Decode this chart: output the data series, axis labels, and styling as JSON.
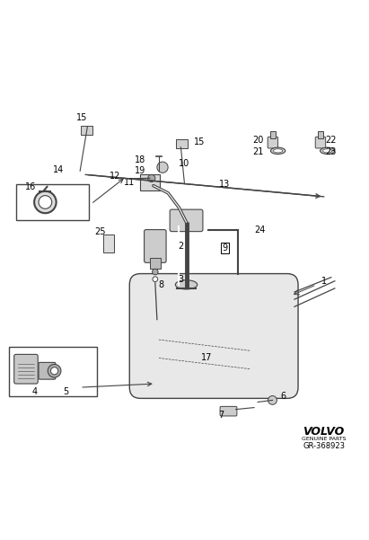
{
  "title": "",
  "bg_color": "#ffffff",
  "fig_width": 4.11,
  "fig_height": 6.01,
  "dpi": 100,
  "volvo_text": "VOLVO",
  "volvo_sub": "GENUINE PARTS",
  "part_number": "GR-368923",
  "gray": "#444444",
  "lgray": "#888888"
}
